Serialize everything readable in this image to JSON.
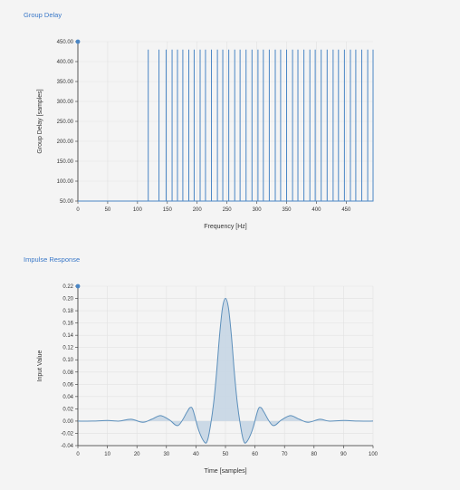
{
  "chart_data": [
    {
      "type": "line",
      "title": "Group Delay",
      "xlabel": "Frequency [Hz]",
      "ylabel": "Group Delay [samples]",
      "xlim": [
        0,
        495
      ],
      "ylim": [
        50,
        450
      ],
      "x_ticks": [
        "0",
        "50",
        "100",
        "150",
        "200",
        "250",
        "300",
        "350",
        "400",
        "450"
      ],
      "y_ticks": [
        "50.00",
        "100.00",
        "150.00",
        "200.00",
        "250.00",
        "300.00",
        "350.00",
        "400.00",
        "450.00"
      ],
      "baseline": 50,
      "spike_value": 430,
      "spike_x": [
        118,
        136,
        148,
        158,
        167,
        176,
        186,
        195,
        205,
        214,
        224,
        234,
        243,
        253,
        263,
        272,
        282,
        292,
        302,
        311,
        321,
        331,
        340,
        350,
        360,
        369,
        379,
        389,
        398,
        408,
        418,
        428,
        437,
        447,
        457,
        466,
        476,
        486,
        495
      ],
      "grid": true,
      "line_color": "#4a86c5"
    },
    {
      "type": "area",
      "title": "Impulse Response",
      "xlabel": "Time [samples]",
      "ylabel": "Input Value",
      "xlim": [
        0,
        100
      ],
      "ylim": [
        -0.04,
        0.22
      ],
      "x_ticks": [
        "0",
        "10",
        "20",
        "30",
        "40",
        "50",
        "60",
        "70",
        "80",
        "90",
        "100"
      ],
      "y_ticks": [
        "-0.04",
        "-0.02",
        "0.00",
        "0.02",
        "0.04",
        "0.06",
        "0.08",
        "0.10",
        "0.12",
        "0.14",
        "0.16",
        "0.18",
        "0.20",
        "0.22"
      ],
      "x": [
        0,
        5,
        10,
        14,
        18,
        22,
        25,
        28,
        31,
        34,
        37,
        38,
        39,
        41,
        43,
        44,
        45,
        46,
        47,
        48,
        49,
        50,
        51,
        52,
        53,
        54,
        55,
        56,
        57,
        59,
        61,
        62,
        63,
        66,
        69,
        72,
        75,
        78,
        82,
        85,
        90,
        95,
        100
      ],
      "y": [
        0,
        0,
        0.001,
        0,
        0.003,
        -0.002,
        0.003,
        0.009,
        0.002,
        -0.007,
        0.015,
        0.022,
        0.018,
        -0.016,
        -0.035,
        -0.03,
        -0.005,
        0.03,
        0.08,
        0.14,
        0.185,
        0.2,
        0.185,
        0.14,
        0.08,
        0.03,
        -0.005,
        -0.03,
        -0.035,
        -0.016,
        0.018,
        0.022,
        0.015,
        -0.007,
        0.002,
        0.009,
        0.003,
        -0.002,
        0.003,
        0,
        0.001,
        0,
        0
      ],
      "grid": true,
      "line_color": "#5c8fbb",
      "fill_color": "#c6d6e4"
    }
  ]
}
